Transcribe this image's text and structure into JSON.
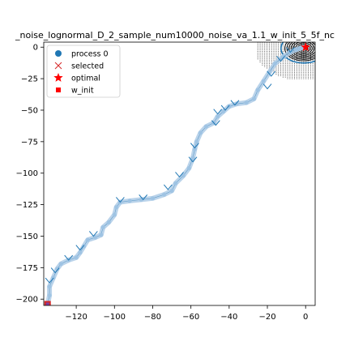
{
  "chart_data": {
    "type": "scatter",
    "title": "_noise_lognormal_D_2_sample_num10000_noise_va_1.1_w_init_5_5f_nc",
    "xlabel": "",
    "ylabel": "",
    "xlim": [
      -137,
      5
    ],
    "ylim": [
      -205,
      4
    ],
    "xticks": [
      -120,
      -100,
      -80,
      -60,
      -40,
      -20,
      0
    ],
    "xtick_labels": [
      "−120",
      "−100",
      "−80",
      "−60",
      "−40",
      "−20",
      "0"
    ],
    "yticks": [
      0,
      -25,
      -50,
      -75,
      -100,
      -125,
      -150,
      -175,
      -200
    ],
    "ytick_labels": [
      "0",
      "−25",
      "−50",
      "−75",
      "−100",
      "−125",
      "−150",
      "−175",
      "−200"
    ],
    "grid": false,
    "legend_position": "top-left",
    "legend": [
      {
        "label": "process 0",
        "marker": "circle",
        "color": "#1f77b4"
      },
      {
        "label": "selected",
        "marker": "x",
        "color": "#d62728"
      },
      {
        "label": "optimal",
        "marker": "star",
        "color": "#ff0000"
      },
      {
        "label": "w_init",
        "marker": "square",
        "color": "#ff0000"
      }
    ],
    "process_path": [
      [
        -135,
        -204
      ],
      [
        -134,
        -197
      ],
      [
        -134,
        -190
      ],
      [
        -132,
        -183
      ],
      [
        -130,
        -176
      ],
      [
        -128,
        -172
      ],
      [
        -124,
        -169
      ],
      [
        -120,
        -167
      ],
      [
        -118,
        -163
      ],
      [
        -116,
        -158
      ],
      [
        -114,
        -153
      ],
      [
        -110,
        -151
      ],
      [
        -107,
        -149
      ],
      [
        -106,
        -143
      ],
      [
        -103,
        -139
      ],
      [
        -100,
        -133
      ],
      [
        -99,
        -127
      ],
      [
        -97,
        -123
      ],
      [
        -92,
        -122
      ],
      [
        -86,
        -121
      ],
      [
        -80,
        -120
      ],
      [
        -74,
        -117
      ],
      [
        -70,
        -114
      ],
      [
        -68,
        -108
      ],
      [
        -64,
        -102
      ],
      [
        -61,
        -96
      ],
      [
        -59,
        -88
      ],
      [
        -58,
        -81
      ],
      [
        -57,
        -75
      ],
      [
        -55,
        -68
      ],
      [
        -52,
        -63
      ],
      [
        -48,
        -60
      ],
      [
        -46,
        -55
      ],
      [
        -43,
        -51
      ],
      [
        -40,
        -47
      ],
      [
        -36,
        -45
      ],
      [
        -31,
        -44
      ],
      [
        -27,
        -41
      ],
      [
        -25,
        -34
      ],
      [
        -22,
        -27
      ],
      [
        -19,
        -20
      ],
      [
        -16,
        -13
      ],
      [
        -12,
        -8
      ],
      [
        -8,
        -4
      ],
      [
        -5,
        -2
      ],
      [
        -3,
        -1
      ],
      [
        -1,
        0
      ]
    ],
    "selected_points": [
      [
        -134,
        -187
      ],
      [
        -131,
        -179
      ],
      [
        -124,
        -169
      ],
      [
        -118,
        -161
      ],
      [
        -111,
        -150
      ],
      [
        -97,
        -123
      ],
      [
        -85,
        -121
      ],
      [
        -72,
        -113
      ],
      [
        -66,
        -103
      ],
      [
        -59,
        -91
      ],
      [
        -58,
        -80
      ],
      [
        -47,
        -62
      ],
      [
        -46,
        -53
      ],
      [
        -42,
        -50
      ],
      [
        -37,
        -46
      ],
      [
        -20,
        -33
      ],
      [
        -18,
        -23
      ],
      [
        -13,
        -11
      ],
      [
        -8,
        -4
      ]
    ],
    "optimal": [
      0,
      0
    ],
    "w_init": [
      -135,
      -204
    ]
  }
}
